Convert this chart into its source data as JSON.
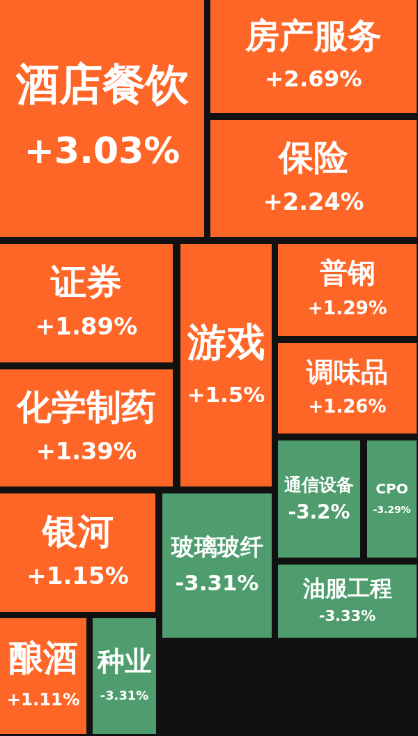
{
  "chart_data": {
    "type": "other",
    "data_labels": true,
    "categories": [
      "酒店餐饮",
      "房产服务",
      "保险",
      "证券",
      "游戏",
      "普钢",
      "调味品",
      "化学制药",
      "银河",
      "玻璃玻纤",
      "通信设备",
      "CPO",
      "油服工程",
      "酿酒",
      "种业"
    ],
    "values": [
      3.03,
      2.69,
      2.24,
      1.89,
      1.5,
      1.29,
      1.26,
      1.39,
      1.15,
      -3.31,
      -3.2,
      -3.29,
      -3.33,
      1.11,
      -3.31
    ],
    "value_labels": [
      "+3.03%",
      "+2.69%",
      "+2.24%",
      "+1.89%",
      "+1.5%",
      "+1.29%",
      "+1.26%",
      "+1.39%",
      "+1.15%",
      "-3.31%",
      "-3.2%",
      "-3.29%",
      "-3.33%",
      "+1.11%",
      "-3.31%"
    ],
    "colors": [
      "#fe6627",
      "#fe6627",
      "#fe6627",
      "#fe6627",
      "#fe6627",
      "#fe6627",
      "#fe6627",
      "#fe6627",
      "#fe6627",
      "#4f9d6f",
      "#4f9d6f",
      "#4f9d6f",
      "#4f9d6f",
      "#fe6627",
      "#4f9d6f"
    ]
  }
}
